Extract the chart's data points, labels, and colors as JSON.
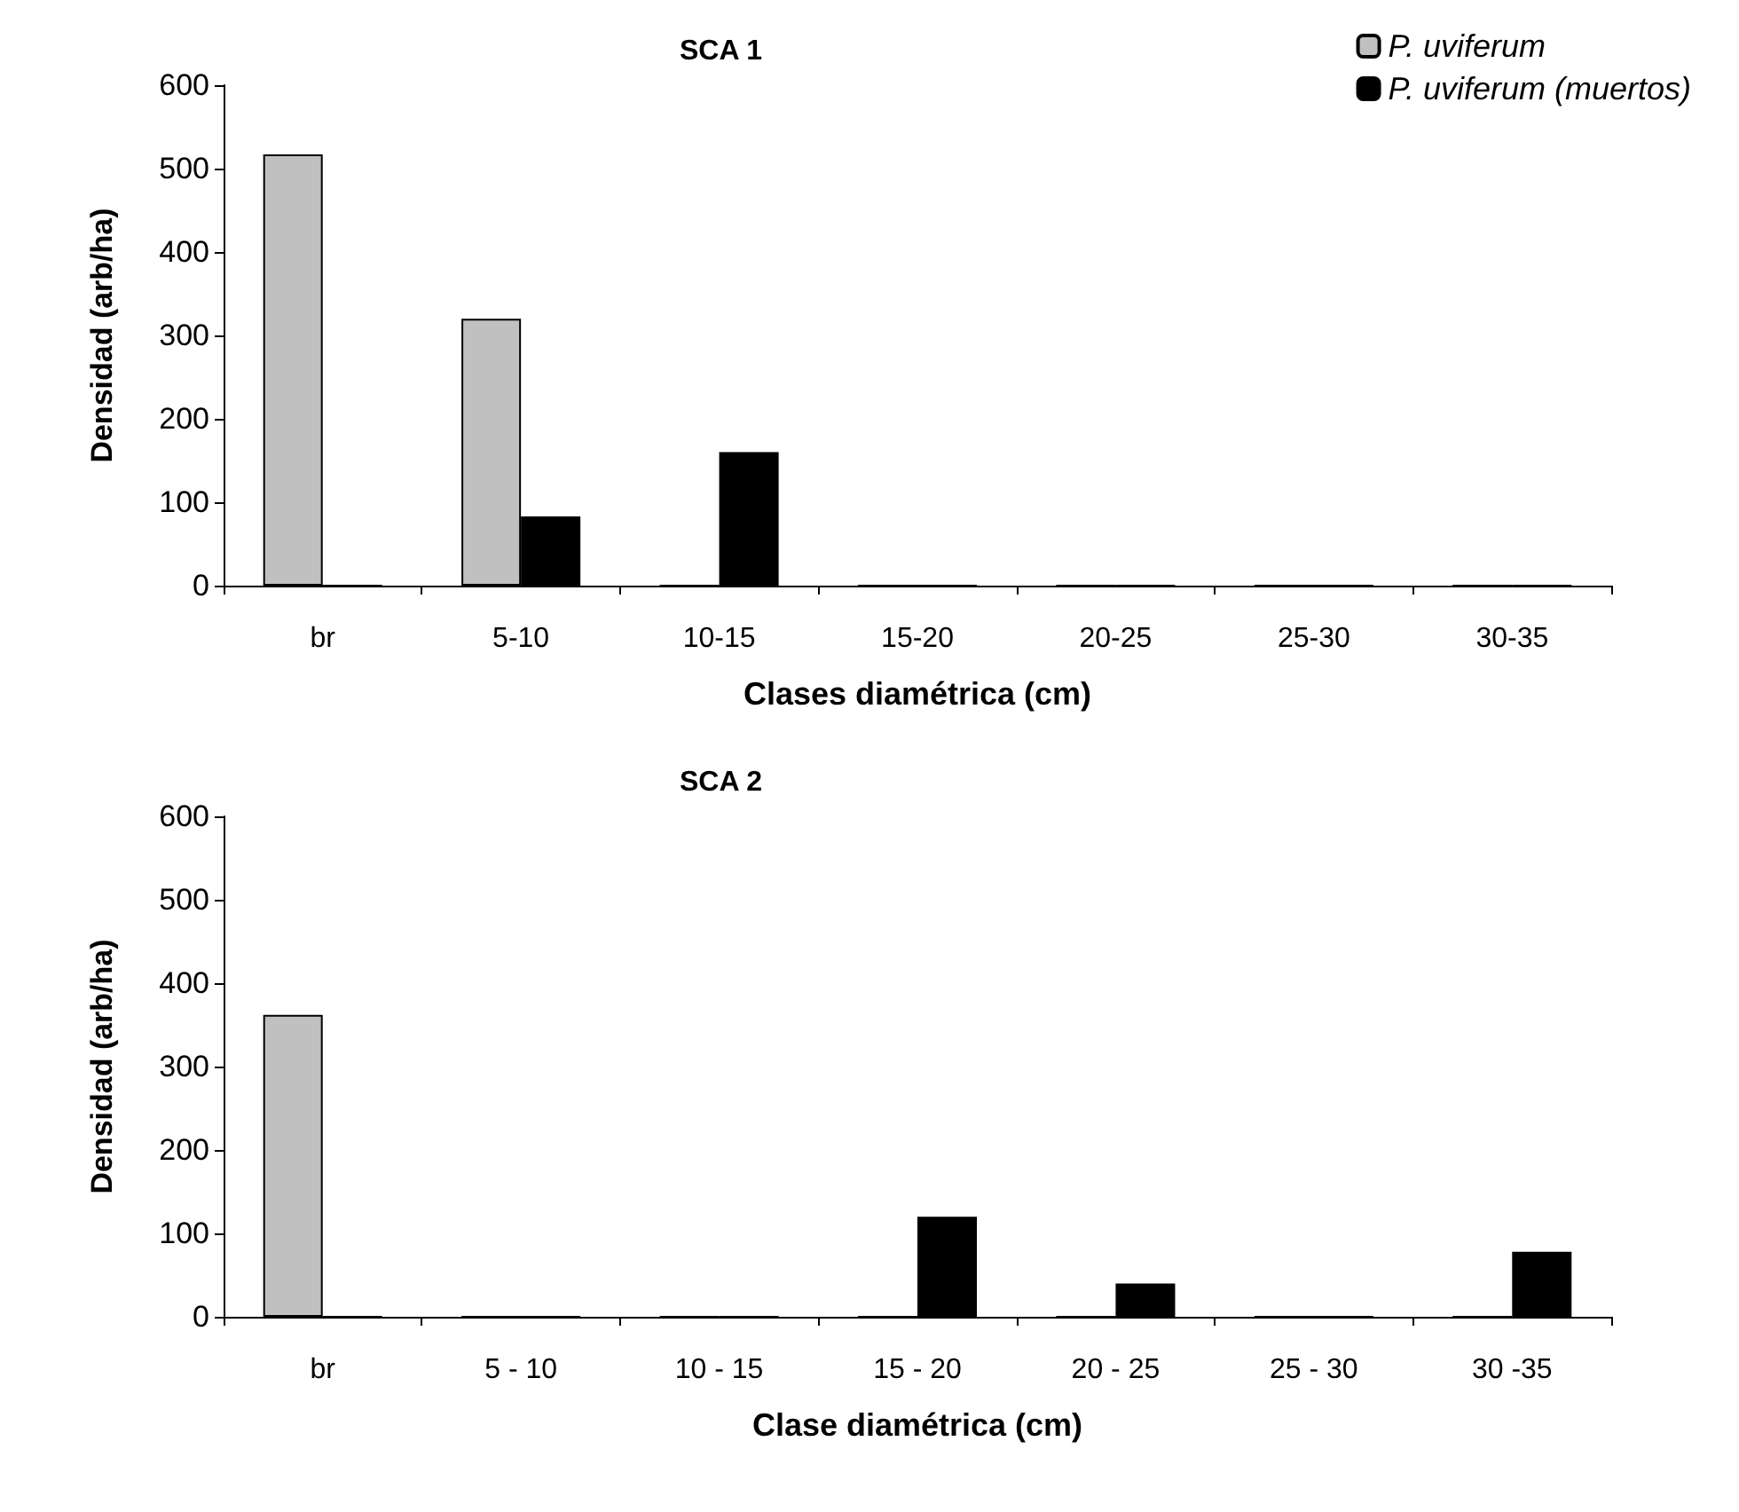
{
  "chart_data": [
    {
      "type": "bar",
      "title": "SCA 1",
      "xlabel": "Clases diamétrica (cm)",
      "ylabel": "Densidad (arb/ha)",
      "categories": [
        "br",
        "5-10",
        "10-15",
        "15-20",
        "20-25",
        "25-30",
        "30-35"
      ],
      "series": [
        {
          "name": "P. uviferum",
          "color": "#c0c0c0",
          "values": [
            517,
            320,
            0,
            0,
            0,
            0,
            0
          ]
        },
        {
          "name": "P. uviferum (muertos)",
          "color": "#000000",
          "values": [
            0,
            83,
            160,
            0,
            0,
            0,
            0
          ]
        }
      ],
      "ylim": [
        0,
        600
      ],
      "yticks": [
        0,
        100,
        200,
        300,
        400,
        500,
        600
      ],
      "grid": false,
      "legend": "top right"
    },
    {
      "type": "bar",
      "title": "SCA 2",
      "xlabel": "Clase diamétrica (cm)",
      "ylabel": "Densidad (arb/ha)",
      "categories": [
        "br",
        "5 - 10",
        "10 - 15",
        "15 - 20",
        "20 - 25",
        "25 - 30",
        "30 -35"
      ],
      "series": [
        {
          "color": "#c0c0c0",
          "values": [
            362,
            0,
            0,
            0,
            0,
            0,
            0
          ]
        },
        {
          "color": "#000000",
          "values": [
            0,
            0,
            0,
            120,
            40,
            0,
            78
          ]
        }
      ],
      "ylim": [
        0,
        600
      ],
      "yticks": [
        0,
        100,
        200,
        300,
        400,
        500,
        600
      ],
      "grid": false,
      "legend": false
    }
  ]
}
